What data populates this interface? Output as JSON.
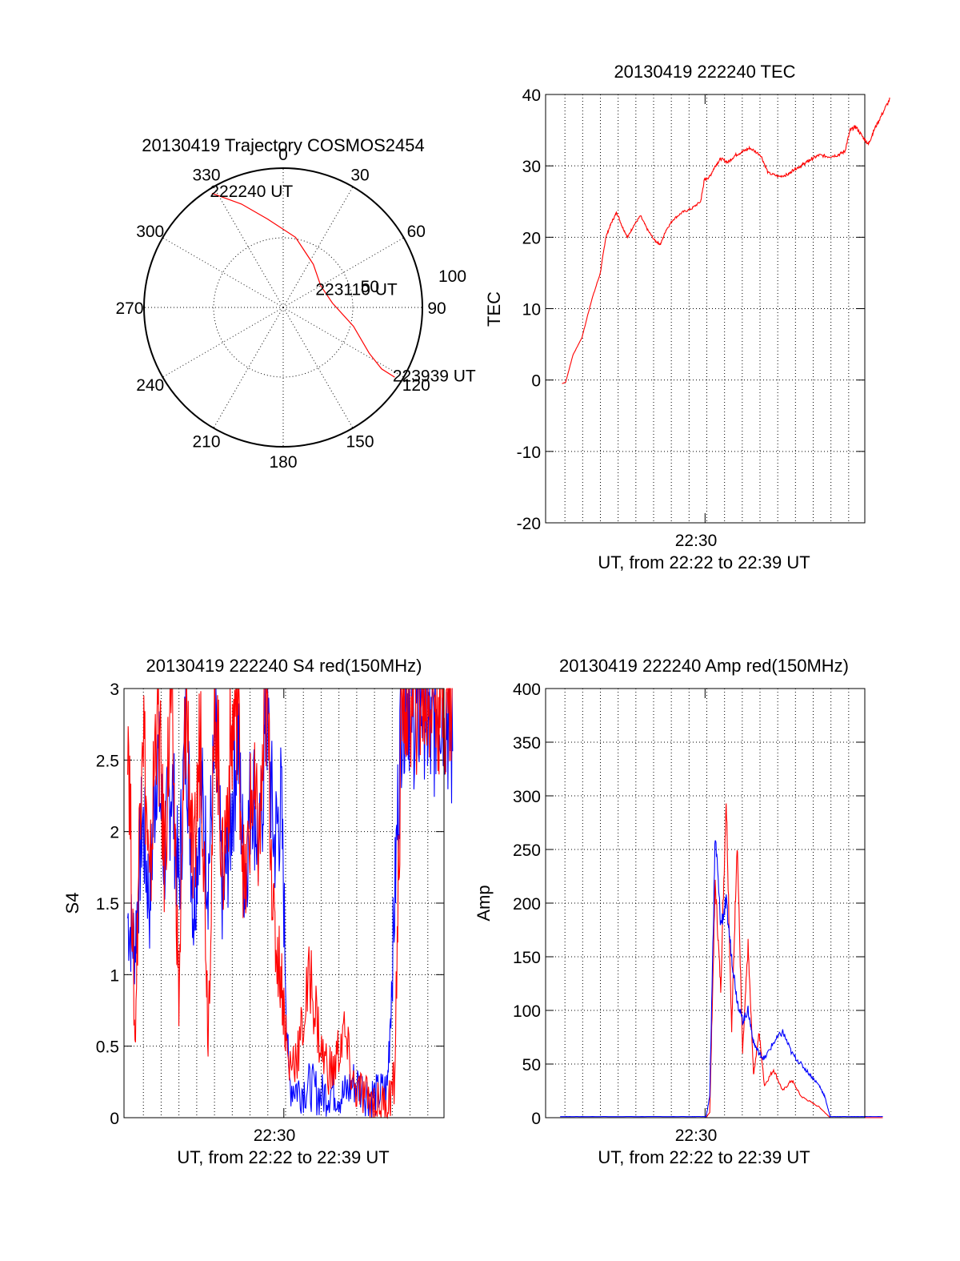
{
  "chart_data": [
    {
      "type": "polar",
      "title": "20130419 Trajectory COSMOS2454",
      "azimuth_labels": [
        "0",
        "30",
        "60",
        "90",
        "120",
        "150",
        "180",
        "210",
        "240",
        "270",
        "300",
        "330"
      ],
      "elevation_labels": [
        "50",
        "100"
      ],
      "trajectory": {
        "color": "#ff0000",
        "points": [
          {
            "az": 328,
            "el": 3
          },
          {
            "az": 338,
            "el": 18
          },
          {
            "az": 350,
            "el": 32
          },
          {
            "az": 10,
            "el": 44
          },
          {
            "az": 35,
            "el": 56
          },
          {
            "az": 60,
            "el": 62
          },
          {
            "az": 85,
            "el": 58
          },
          {
            "az": 105,
            "el": 43
          },
          {
            "az": 118,
            "el": 27
          },
          {
            "az": 122,
            "el": 15
          },
          {
            "az": 122,
            "el": 5
          }
        ],
        "annotations": [
          {
            "label": "222240 UT",
            "az": 329,
            "el": 2
          },
          {
            "label": "223110 UT",
            "az": 62,
            "el": 64
          },
          {
            "label": "223939 UT",
            "az": 121,
            "el": 5
          }
        ]
      }
    },
    {
      "type": "line",
      "title": "20130419 222240 TEC",
      "ylabel": "TEC",
      "xlabel": "UT, from 22:22 to 22:39 UT",
      "xtick_label": "22:30",
      "yticks": [
        "-20",
        "-10",
        "0",
        "10",
        "20",
        "30",
        "40"
      ],
      "ylim": [
        -20,
        40
      ],
      "series": [
        {
          "color": "#ff0000",
          "x_minutes": [
            0.9,
            1.1,
            1.5,
            2.0,
            2.5,
            3.0,
            3.3,
            3.6,
            3.9,
            4.2,
            4.5,
            4.8,
            5.2,
            5.6,
            6.0,
            6.3,
            6.6,
            7.0,
            7.5,
            8.0,
            8.5,
            8.7,
            9.0,
            9.3,
            9.6,
            10.0,
            10.4,
            10.8,
            11.2,
            11.8,
            12.2,
            12.8,
            13.3,
            13.6,
            14.0,
            14.3,
            14.6,
            15.0,
            15.5,
            16.0,
            16.4,
            16.7,
            17.0,
            17.4,
            17.7,
            18.0,
            18.4,
            18.9
          ],
          "y": [
            -0.5,
            -0.3,
            3.5,
            6,
            11,
            15,
            20,
            22,
            23.5,
            21.5,
            20,
            21.5,
            23,
            21,
            19.5,
            19,
            21,
            22.5,
            23.5,
            24,
            25,
            28,
            28.5,
            30,
            31,
            30.5,
            31.5,
            32,
            32.5,
            31.5,
            29,
            28.5,
            28.8,
            29.5,
            30,
            30.5,
            31,
            31.5,
            31.3,
            31.5,
            32,
            35,
            35.5,
            34,
            33,
            35,
            37,
            39.5
          ]
        }
      ]
    },
    {
      "type": "line",
      "title": "20130419 222240 S4 red(150MHz)",
      "ylabel": "S4",
      "xlabel": "UT, from 22:22 to 22:39 UT",
      "xtick_label": "22:30",
      "yticks": [
        "0",
        "0.5",
        "1",
        "1.5",
        "2",
        "2.5",
        "3"
      ],
      "ylim": [
        0,
        3
      ],
      "series": [
        {
          "name_color": "blue",
          "color": "#0000ff",
          "x_minutes": [
            0.2,
            0.6,
            1.0,
            1.4,
            1.8,
            2.2,
            2.6,
            3.0,
            3.4,
            3.8,
            4.2,
            4.6,
            5.0,
            5.4,
            5.8,
            6.2,
            6.6,
            7.0,
            7.4,
            7.8,
            8.2,
            8.6,
            9.0,
            9.6,
            10.2,
            10.8,
            11.4,
            12.0,
            12.6,
            13.2,
            13.8,
            14.4,
            14.8,
            15.2,
            15.6,
            16.0,
            16.4,
            16.8,
            17.2,
            17.6,
            18.0
          ],
          "y": [
            1.4,
            1.2,
            2.1,
            1.5,
            2.6,
            1.8,
            2.4,
            1.6,
            2.8,
            1.4,
            2.3,
            1.7,
            2.6,
            1.5,
            2.0,
            2.7,
            1.6,
            2.4,
            1.8,
            2.9,
            1.9,
            2.2,
            0.25,
            0.2,
            0.22,
            0.15,
            0.2,
            0.15,
            0.25,
            0.18,
            0.15,
            0.2,
            1.5,
            3,
            3,
            2.8,
            3,
            2.6,
            3,
            2.9,
            2.5
          ]
        },
        {
          "name_color": "red",
          "color": "#ff0000",
          "x_minutes": [
            0.2,
            0.6,
            1.0,
            1.4,
            1.8,
            2.2,
            2.6,
            3.0,
            3.4,
            3.8,
            4.2,
            4.6,
            5.0,
            5.4,
            5.8,
            6.2,
            6.6,
            7.0,
            7.4,
            7.8,
            8.2,
            8.6,
            9.0,
            9.6,
            10.2,
            10.8,
            11.4,
            12.0,
            12.6,
            13.2,
            13.8,
            14.4,
            14.8,
            15.2,
            15.6,
            16.0,
            16.4,
            16.8,
            17.2,
            17.6,
            18.0
          ],
          "y": [
            3,
            0.5,
            3,
            1.5,
            3,
            1.8,
            3,
            0.8,
            3,
            1.6,
            2.8,
            0.6,
            3,
            1.7,
            2.5,
            3,
            1.5,
            2.3,
            1.9,
            3,
            1.3,
            1.0,
            0.35,
            0.5,
            1.0,
            0.45,
            0.3,
            0.6,
            0.2,
            0.15,
            0.1,
            0.1,
            0.25,
            3,
            3,
            3,
            3,
            3,
            3,
            3,
            3
          ]
        }
      ]
    },
    {
      "type": "line",
      "title": "20130419 222240 Amp red(150MHz)",
      "ylabel": "Amp",
      "xlabel": "UT, from 22:22 to 22:39 UT",
      "xtick_label": "22:30",
      "yticks": [
        "0",
        "50",
        "100",
        "150",
        "200",
        "250",
        "300",
        "350",
        "400"
      ],
      "ylim": [
        0,
        400
      ],
      "series": [
        {
          "name_color": "red",
          "color": "#ff0000",
          "x_minutes": [
            0.8,
            2,
            4,
            6,
            8,
            8.8,
            9.0,
            9.3,
            9.6,
            9.9,
            10.2,
            10.5,
            10.8,
            11.1,
            11.4,
            11.7,
            12.0,
            12.5,
            13.0,
            13.5,
            14.0,
            14.5,
            15.0,
            15.3,
            15.6,
            16.0,
            17.0,
            18.6
          ],
          "y": [
            0,
            0,
            0,
            0,
            0,
            0,
            5,
            220,
            120,
            300,
            80,
            260,
            60,
            160,
            40,
            80,
            30,
            45,
            25,
            35,
            20,
            15,
            10,
            5,
            0,
            0,
            0,
            0
          ]
        },
        {
          "name_color": "blue",
          "color": "#0000ff",
          "x_minutes": [
            0.8,
            2,
            4,
            6,
            8,
            8.8,
            9.0,
            9.3,
            9.6,
            9.9,
            10.2,
            10.5,
            10.8,
            11.1,
            11.4,
            11.7,
            12.0,
            12.5,
            13.0,
            13.5,
            14.0,
            14.5,
            15.0,
            15.3,
            15.6,
            16.0,
            17.0,
            18.6
          ],
          "y": [
            1,
            1,
            1,
            1,
            1,
            1,
            20,
            265,
            180,
            200,
            150,
            110,
            90,
            100,
            70,
            60,
            55,
            70,
            80,
            60,
            50,
            40,
            30,
            20,
            1,
            1,
            1,
            1
          ]
        }
      ]
    }
  ]
}
